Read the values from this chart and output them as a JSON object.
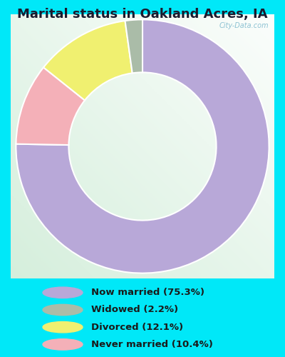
{
  "title": "Marital status in Oakland Acres, IA",
  "values": [
    75.3,
    10.4,
    12.1,
    2.2
  ],
  "colors": [
    "#b8a8d8",
    "#f4b0b8",
    "#f0f070",
    "#aabca8"
  ],
  "start_angle": 90,
  "legend_labels": [
    "Now married (75.3%)",
    "Widowed (2.2%)",
    "Divorced (12.1%)",
    "Never married (10.4%)"
  ],
  "legend_colors": [
    "#b8a8d8",
    "#aabca8",
    "#f0f070",
    "#f4b0b8"
  ],
  "outer_bg": "#00e8f8",
  "chart_bg_color": "#ddeedd",
  "title_fontsize": 13,
  "watermark": "City-Data.com",
  "donut_width": 0.5
}
